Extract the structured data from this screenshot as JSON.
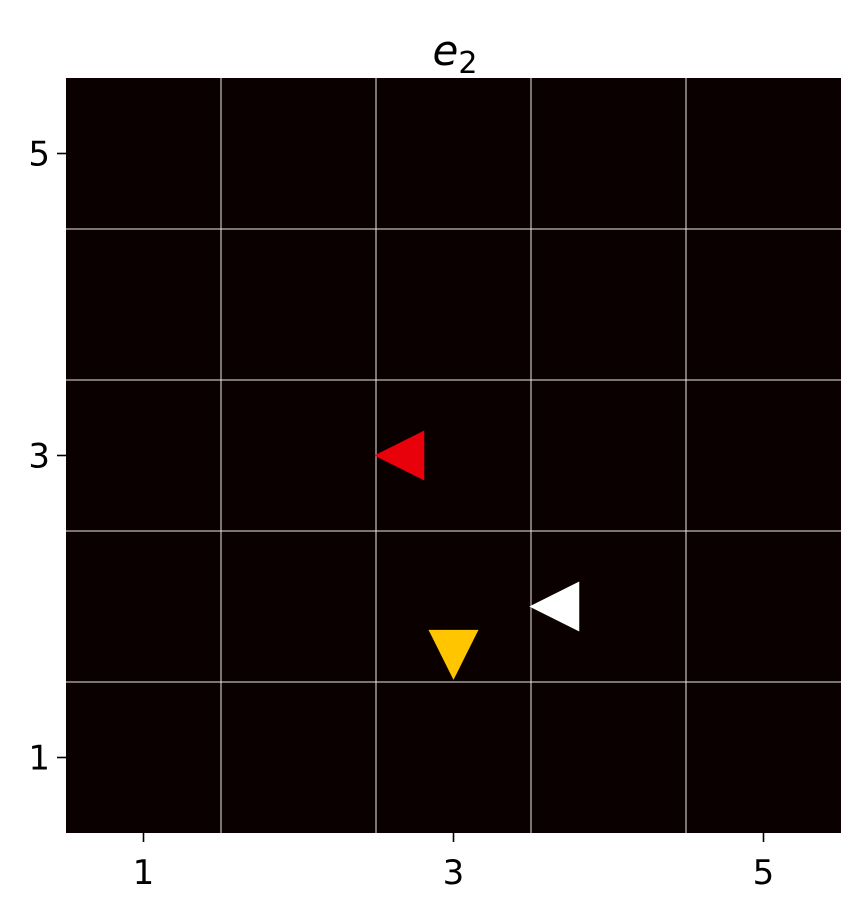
{
  "chart_data": {
    "type": "scatter",
    "title": "e",
    "title_subscript": "2",
    "xlim": [
      0.5,
      5.5
    ],
    "ylim": [
      0.5,
      5.5
    ],
    "xticks": [
      1,
      3,
      5
    ],
    "yticks": [
      1,
      3,
      5
    ],
    "xtick_labels": [
      "1",
      "3",
      "5"
    ],
    "ytick_labels": [
      "1",
      "3",
      "5"
    ],
    "grid": true,
    "grid_lines_x": [
      1.5,
      2.5,
      3.5,
      4.5
    ],
    "grid_lines_y": [
      1.5,
      2.5,
      3.5,
      4.5
    ],
    "background_color": "#0b0000",
    "grid_color": "#e8e8e8",
    "points": [
      {
        "x": 2.65,
        "y": 3.0,
        "marker": "triangle-left",
        "color": "#e8000b"
      },
      {
        "x": 3.65,
        "y": 2.0,
        "marker": "triangle-left",
        "color": "#ffffff"
      },
      {
        "x": 3.0,
        "y": 1.68,
        "marker": "triangle-down",
        "color": "#ffc600"
      }
    ]
  }
}
